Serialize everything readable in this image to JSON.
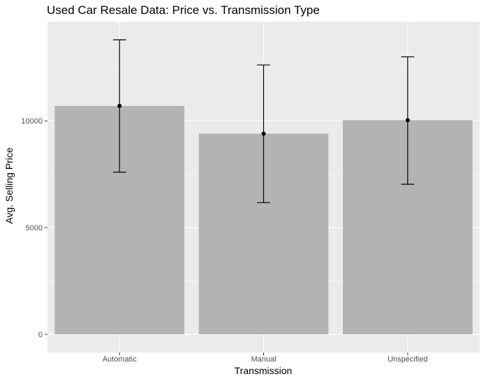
{
  "chart_data": {
    "type": "bar",
    "title": "Used Car Resale Data: Price vs. Transmission Type",
    "xlabel": "Transmission",
    "ylabel": "Avg. Selling Price",
    "categories": [
      "Automatic",
      "Manual",
      "Unspecified"
    ],
    "values": [
      10700,
      9400,
      10030
    ],
    "error_low": [
      7600,
      6170,
      7030
    ],
    "error_high": [
      13800,
      12620,
      13000
    ],
    "y_ticks": [
      0,
      5000,
      10000
    ],
    "y_tick_labels": [
      "0",
      "5000",
      "10000"
    ],
    "ylim": [
      -850,
      14650
    ],
    "grid": true,
    "legend": "none",
    "colors": {
      "panel": "#ebebeb",
      "grid_major": "#ffffff",
      "bar": "#b3b3b3",
      "errorbar": "#000000",
      "point": "#000000",
      "tick": "#333333"
    }
  }
}
